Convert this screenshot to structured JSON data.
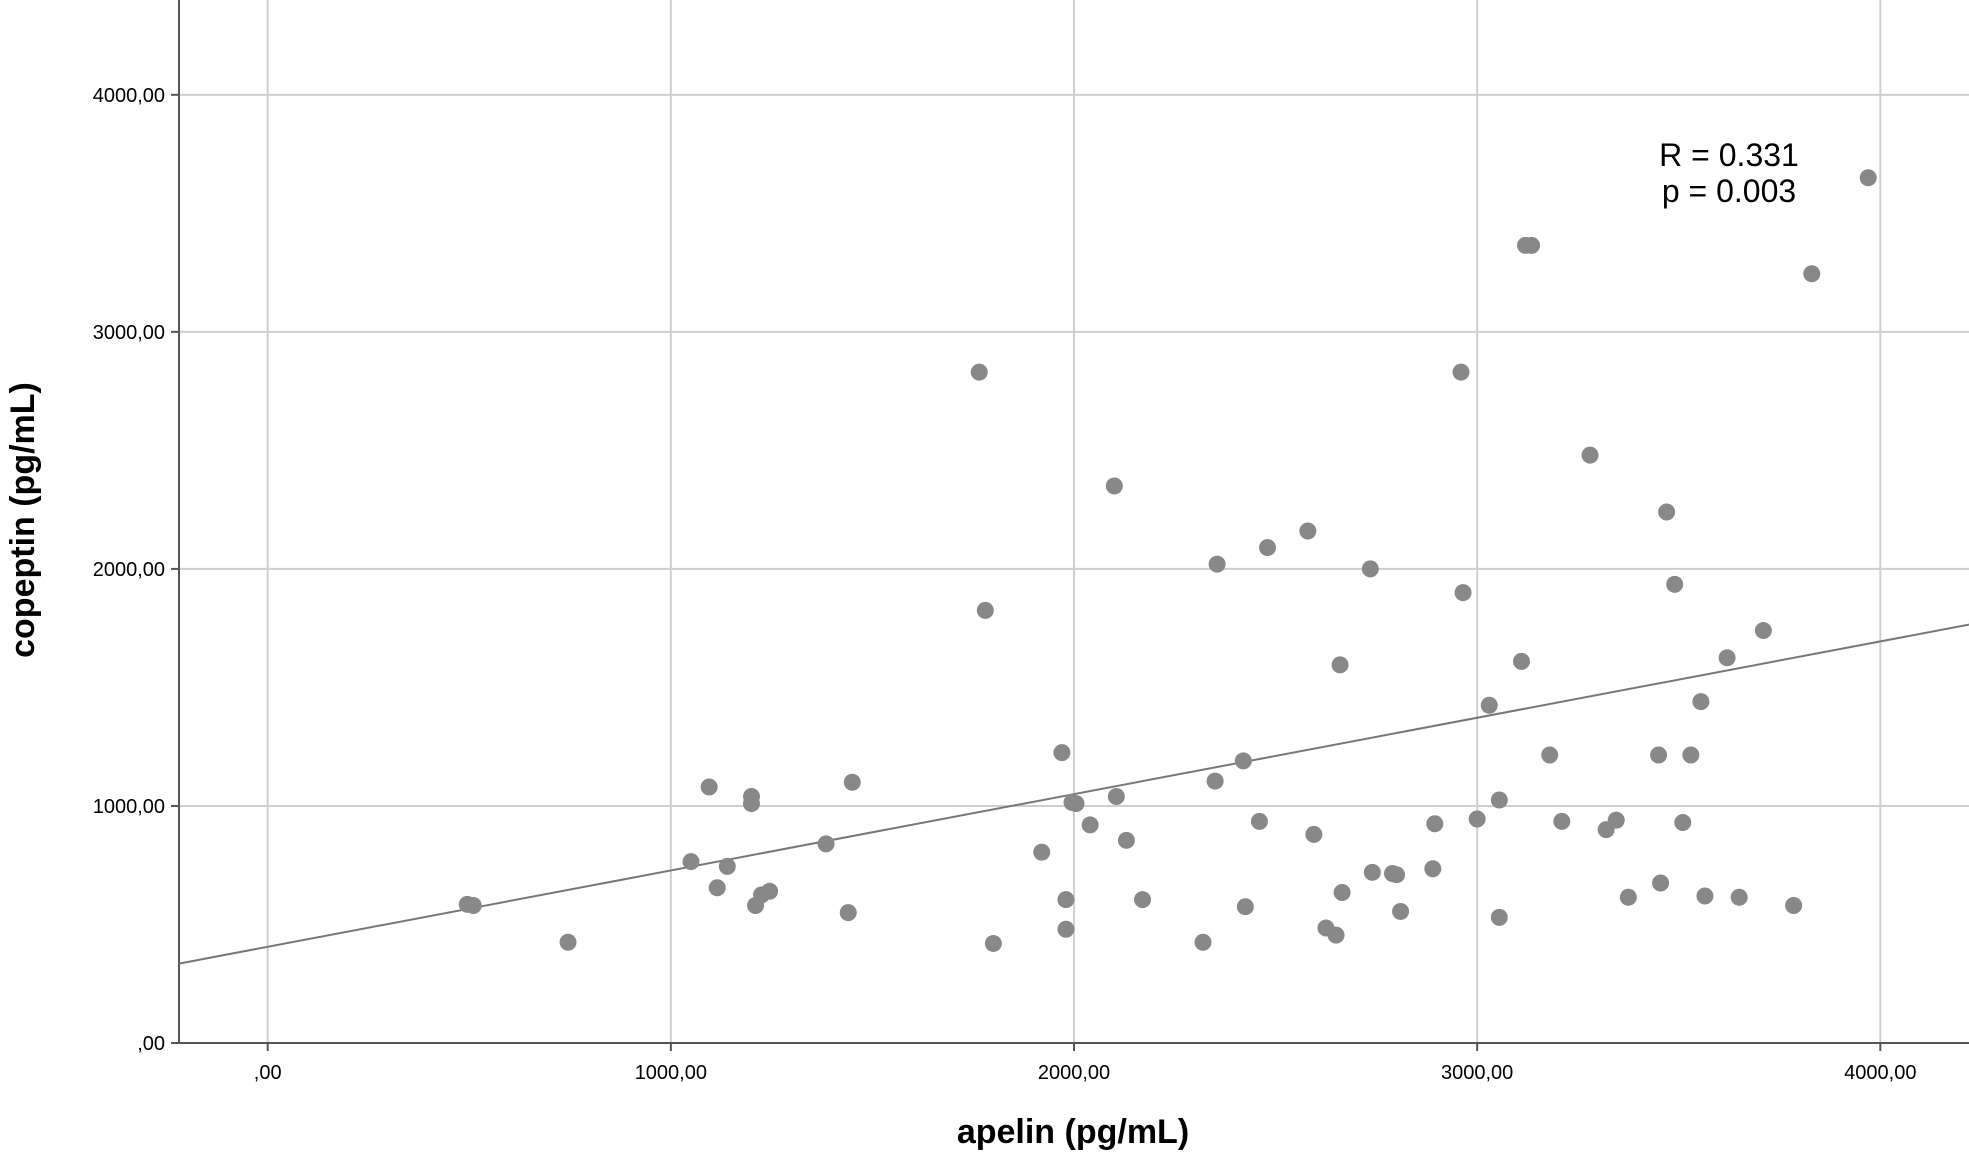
{
  "chart_data": {
    "type": "scatter",
    "title": "",
    "xlabel": "apelin (pg/mL)",
    "ylabel": "copeptin (pg/mL)",
    "xlim": [
      -220,
      4220
    ],
    "ylim": [
      0,
      4400
    ],
    "x_ticks": [
      0,
      1000,
      2000,
      3000,
      4000
    ],
    "x_tick_labels": [
      ",00",
      "1000,00",
      "2000,00",
      "3000,00",
      "4000,00"
    ],
    "y_ticks": [
      0,
      1000,
      2000,
      3000,
      4000
    ],
    "y_tick_labels": [
      ",00",
      "1000,00",
      "2000,00",
      "3000,00",
      "4000,00"
    ],
    "grid": true,
    "annotation": [
      "R = 0.331",
      "p = 0.003"
    ],
    "fit_line": {
      "x": [
        -220,
        4220
      ],
      "y": [
        335,
        1765
      ]
    },
    "points": [
      [
        495,
        585
      ],
      [
        510,
        580
      ],
      [
        745,
        425
      ],
      [
        1050,
        765
      ],
      [
        1095,
        1080
      ],
      [
        1115,
        655
      ],
      [
        1140,
        745
      ],
      [
        1200,
        1040
      ],
      [
        1200,
        1010
      ],
      [
        1210,
        580
      ],
      [
        1225,
        625
      ],
      [
        1245,
        640
      ],
      [
        1385,
        840
      ],
      [
        1440,
        550
      ],
      [
        1450,
        1100
      ],
      [
        1765,
        2830
      ],
      [
        1780,
        1825
      ],
      [
        1800,
        420
      ],
      [
        1920,
        805
      ],
      [
        1970,
        1225
      ],
      [
        1980,
        605
      ],
      [
        1980,
        480
      ],
      [
        1995,
        1015
      ],
      [
        2005,
        1010
      ],
      [
        2040,
        920
      ],
      [
        2100,
        2350
      ],
      [
        2105,
        1040
      ],
      [
        2130,
        855
      ],
      [
        2170,
        605
      ],
      [
        2320,
        425
      ],
      [
        2350,
        1105
      ],
      [
        2355,
        2020
      ],
      [
        2420,
        1190
      ],
      [
        2425,
        575
      ],
      [
        2460,
        935
      ],
      [
        2480,
        2090
      ],
      [
        2580,
        2160
      ],
      [
        2595,
        880
      ],
      [
        2625,
        485
      ],
      [
        2650,
        455
      ],
      [
        2660,
        1595
      ],
      [
        2665,
        635
      ],
      [
        2735,
        2000
      ],
      [
        2740,
        720
      ],
      [
        2790,
        715
      ],
      [
        2800,
        710
      ],
      [
        2810,
        555
      ],
      [
        2890,
        735
      ],
      [
        2895,
        925
      ],
      [
        2960,
        2830
      ],
      [
        2965,
        1900
      ],
      [
        3000,
        945
      ],
      [
        3030,
        1425
      ],
      [
        3055,
        530
      ],
      [
        3055,
        1025
      ],
      [
        3110,
        1610
      ],
      [
        3120,
        3365
      ],
      [
        3135,
        3365
      ],
      [
        3180,
        1215
      ],
      [
        3210,
        935
      ],
      [
        3280,
        2480
      ],
      [
        3320,
        900
      ],
      [
        3345,
        940
      ],
      [
        3375,
        615
      ],
      [
        3450,
        1215
      ],
      [
        3455,
        675
      ],
      [
        3470,
        2240
      ],
      [
        3490,
        1935
      ],
      [
        3510,
        930
      ],
      [
        3530,
        1215
      ],
      [
        3555,
        1440
      ],
      [
        3565,
        620
      ],
      [
        3620,
        1625
      ],
      [
        3650,
        615
      ],
      [
        3710,
        1740
      ],
      [
        3785,
        580
      ],
      [
        3830,
        3245
      ],
      [
        3970,
        3650
      ]
    ]
  }
}
